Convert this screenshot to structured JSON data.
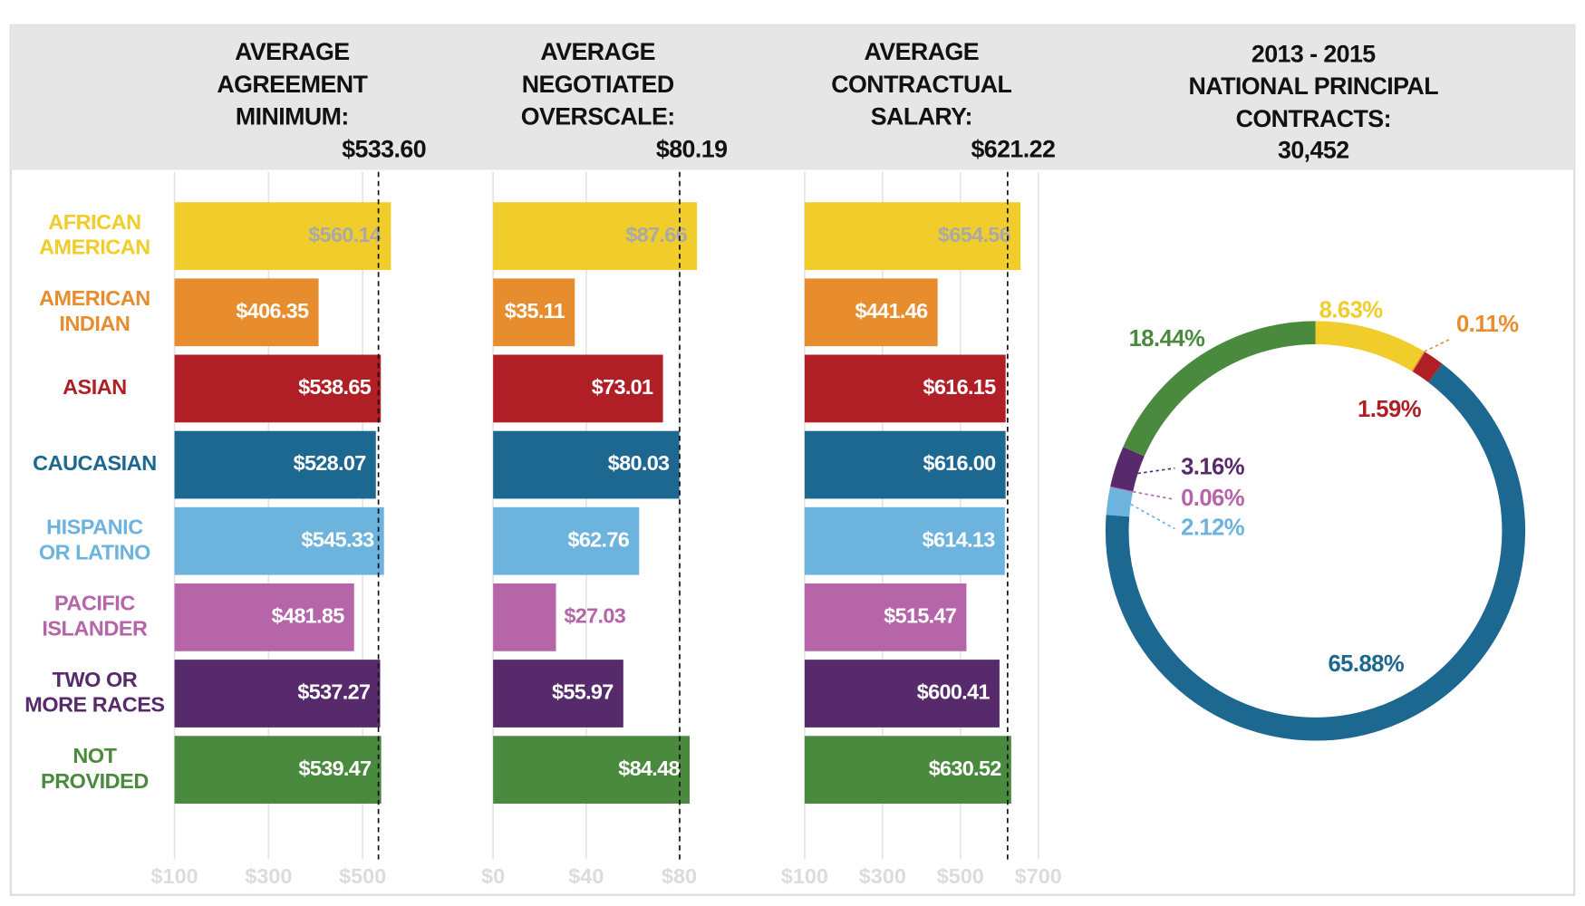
{
  "chart_data": [
    {
      "type": "bar",
      "title": [
        "AVERAGE",
        "AGREEMENT",
        "MINIMUM:"
      ],
      "reference": {
        "value": 533.6,
        "label": "$533.60"
      },
      "categories": [
        [
          "AFRICAN",
          "AMERICAN"
        ],
        [
          "AMERICAN",
          "INDIAN"
        ],
        [
          "ASIAN"
        ],
        [
          "CAUCASIAN"
        ],
        [
          "HISPANIC",
          "OR LATINO"
        ],
        [
          "PACIFIC",
          "ISLANDER"
        ],
        [
          "TWO OR",
          "MORE RACES"
        ],
        [
          "NOT",
          "PROVIDED"
        ]
      ],
      "values": [
        560.14,
        406.35,
        538.65,
        528.07,
        545.33,
        481.85,
        537.27,
        539.47
      ],
      "value_labels": [
        "$560.14",
        "$406.35",
        "$538.65",
        "$528.07",
        "$545.33",
        "$481.85",
        "$537.27",
        "$539.47"
      ],
      "colors": [
        "#f0cd2a",
        "#e88d2e",
        "#b01f26",
        "#1c6890",
        "#6cb3de",
        "#b565a8",
        "#572b6b",
        "#4a8a3f"
      ],
      "xlim": [
        100,
        600
      ],
      "xticks": [
        {
          "value": 100,
          "label": "$100"
        },
        {
          "value": 300,
          "label": "$300"
        },
        {
          "value": 500,
          "label": "$500"
        }
      ],
      "grid": true
    },
    {
      "type": "bar",
      "title": [
        "AVERAGE",
        "NEGOTIATED",
        "OVERSCALE:"
      ],
      "reference": {
        "value": 80.19,
        "label": "$80.19"
      },
      "values": [
        87.66,
        35.11,
        73.01,
        80.03,
        62.76,
        27.03,
        55.97,
        84.48
      ],
      "value_labels": [
        "$87.66",
        "$35.11",
        "$73.01",
        "$80.03",
        "$62.76",
        "$27.03",
        "$55.97",
        "$84.48"
      ],
      "colors": [
        "#f0cd2a",
        "#e88d2e",
        "#b01f26",
        "#1c6890",
        "#6cb3de",
        "#b565a8",
        "#572b6b",
        "#4a8a3f"
      ],
      "xlim": [
        0,
        90
      ],
      "xticks": [
        {
          "value": 0,
          "label": "$0"
        },
        {
          "value": 40,
          "label": "$40"
        },
        {
          "value": 80,
          "label": "$80"
        }
      ],
      "grid": true
    },
    {
      "type": "bar",
      "title": [
        "AVERAGE",
        "CONTRACTUAL",
        "SALARY:"
      ],
      "reference": {
        "value": 621.22,
        "label": "$621.22"
      },
      "values": [
        654.56,
        441.46,
        616.15,
        616.0,
        614.13,
        515.47,
        600.41,
        630.52
      ],
      "value_labels": [
        "$654.56",
        "$441.46",
        "$616.15",
        "$616.00",
        "$614.13",
        "$515.47",
        "$600.41",
        "$630.52"
      ],
      "colors": [
        "#f0cd2a",
        "#e88d2e",
        "#b01f26",
        "#1c6890",
        "#6cb3de",
        "#b565a8",
        "#572b6b",
        "#4a8a3f"
      ],
      "xlim": [
        100,
        700
      ],
      "xticks": [
        {
          "value": 100,
          "label": "$100"
        },
        {
          "value": 300,
          "label": "$300"
        },
        {
          "value": 500,
          "label": "$500"
        },
        {
          "value": 700,
          "label": "$700"
        }
      ],
      "grid": true
    },
    {
      "type": "pie",
      "donut": true,
      "title": [
        "2013 - 2015",
        "NATIONAL PRINCIPAL",
        "CONTRACTS:"
      ],
      "total": {
        "value": 30452,
        "label": "30,452"
      },
      "values": [
        8.63,
        0.11,
        1.59,
        65.88,
        2.12,
        0.06,
        3.16,
        18.44
      ],
      "value_labels": [
        "8.63%",
        "0.11%",
        "1.59%",
        "65.88%",
        "2.12%",
        "0.06%",
        "3.16%",
        "18.44%"
      ],
      "colors": [
        "#f0cd2a",
        "#e88d2e",
        "#b01f26",
        "#1c6890",
        "#6cb3de",
        "#b565a8",
        "#572b6b",
        "#4a8a3f"
      ]
    }
  ]
}
